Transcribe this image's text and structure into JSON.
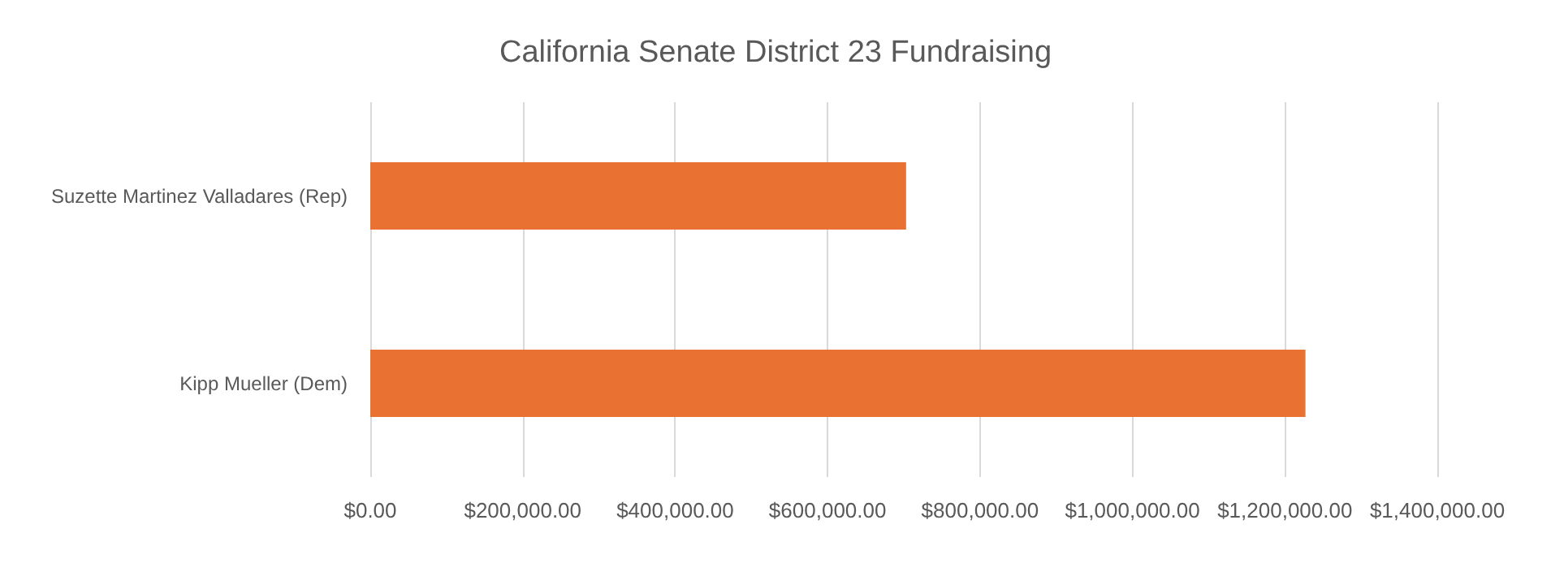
{
  "chart_data": {
    "type": "bar",
    "orientation": "horizontal",
    "title": "California Senate District 23 Fundraising",
    "categories": [
      "Suzette Martinez Valladares (Rep)",
      "Kipp Mueller (Dem)"
    ],
    "values": [
      703000,
      1227000
    ],
    "color": "#e97132",
    "xlim": [
      0,
      1400000
    ],
    "xticks": [
      {
        "value": 0,
        "label": "$0.00"
      },
      {
        "value": 200000,
        "label": "$200,000.00"
      },
      {
        "value": 400000,
        "label": "$400,000.00"
      },
      {
        "value": 600000,
        "label": "$600,000.00"
      },
      {
        "value": 800000,
        "label": "$800,000.00"
      },
      {
        "value": 1000000,
        "label": "$1,000,000.00"
      },
      {
        "value": 1200000,
        "label": "$1,200,000.00"
      },
      {
        "value": 1400000,
        "label": "$1,400,000.00"
      }
    ],
    "grid": "x"
  }
}
